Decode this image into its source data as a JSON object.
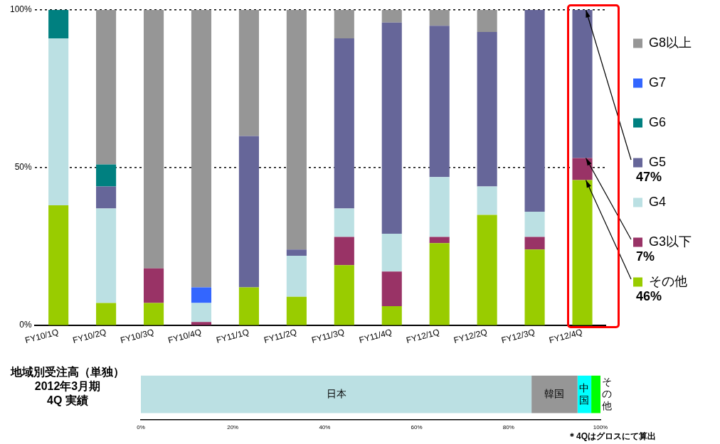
{
  "chart_data": [
    {
      "type": "bar",
      "stacked": true,
      "categories": [
        "FY10/1Q",
        "FY10/2Q",
        "FY10/3Q",
        "FY10/4Q",
        "FY11/1Q",
        "FY11/2Q",
        "FY11/3Q",
        "FY11/4Q",
        "FY12/1Q",
        "FY12/2Q",
        "FY12/3Q",
        "FY12/4Q"
      ],
      "series": [
        {
          "name": "その他",
          "color": "#99cc00",
          "values": [
            38,
            7,
            7,
            0,
            12,
            9,
            19,
            6,
            26,
            35,
            24,
            46
          ]
        },
        {
          "name": "G3以下",
          "color": "#993366",
          "values": [
            0,
            0,
            11,
            1,
            0,
            0,
            9,
            11,
            2,
            0,
            4,
            7
          ]
        },
        {
          "name": "G4",
          "color": "#bbe0e3",
          "values": [
            53,
            30,
            0,
            6,
            0,
            13,
            9,
            12,
            19,
            9,
            8,
            0
          ]
        },
        {
          "name": "G5",
          "color": "#666699",
          "values": [
            0,
            7,
            0,
            0,
            48,
            2,
            54,
            67,
            48,
            49,
            64,
            47
          ]
        },
        {
          "name": "G6",
          "color": "#008080",
          "values": [
            9,
            7,
            0,
            0,
            0,
            0,
            0,
            0,
            0,
            0,
            0,
            0
          ]
        },
        {
          "name": "G7",
          "color": "#3366ff",
          "values": [
            0,
            0,
            0,
            5,
            0,
            0,
            0,
            0,
            0,
            0,
            0,
            0
          ]
        },
        {
          "name": "G8以上",
          "color": "#969696",
          "values": [
            0,
            49,
            82,
            88,
            40,
            76,
            9,
            4,
            5,
            7,
            0,
            0
          ]
        }
      ],
      "ylim": [
        0,
        100
      ],
      "yticks": [
        {
          "value": 0,
          "label": "0%"
        },
        {
          "value": 50,
          "label": "50%"
        },
        {
          "value": 100,
          "label": "100%"
        }
      ],
      "grid": "y",
      "legend": "right",
      "annotations": [
        {
          "text": "47%",
          "x": "FY12/4Q",
          "y": 100
        },
        {
          "text": "7%",
          "x": "FY12/4Q",
          "y": 53
        },
        {
          "text": "46%",
          "x": "FY12/4Q",
          "y": 46
        }
      ]
    },
    {
      "type": "bar",
      "stacked": true,
      "orientation": "horizontal",
      "title": "地域別受注高（単独）\n2012年3月期\n4Q 実績",
      "categories": [
        null
      ],
      "series": [
        {
          "name": "日本",
          "color": "#bbe0e3",
          "values": [
            85
          ]
        },
        {
          "name": "韓国",
          "color": "#969696",
          "values": [
            10
          ]
        },
        {
          "name": "中国",
          "color": "#00ffff",
          "values": [
            3
          ]
        },
        {
          "name": "その他",
          "color": "#00ff00",
          "values": [
            2
          ]
        }
      ],
      "xlim": [
        0,
        100
      ],
      "xticks": [
        {
          "value": 0,
          "label": "0%"
        },
        {
          "value": 20,
          "label": "20%"
        },
        {
          "value": 40,
          "label": "40%"
        },
        {
          "value": 60,
          "label": "60%"
        },
        {
          "value": 80,
          "label": "80%"
        },
        {
          "value": 100,
          "label": "100%"
        }
      ],
      "legend": false,
      "annotations": [
        "＊4Qはグロスにて算出"
      ]
    }
  ]
}
